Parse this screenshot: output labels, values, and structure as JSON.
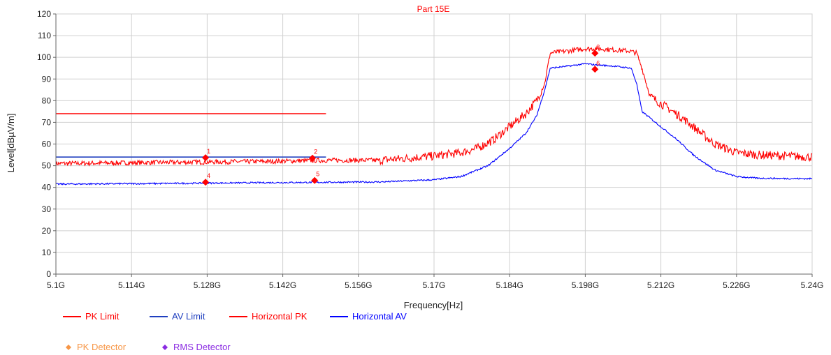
{
  "chart_data": {
    "type": "line",
    "title": "Part 15E",
    "xlabel": "Frequency[Hz]",
    "ylabel": "Level[dBµV/m]",
    "xlim": [
      5.1,
      5.24
    ],
    "ylim": [
      0,
      120
    ],
    "grid": true,
    "x_unit": "GHz",
    "x_ticks": [
      5.1,
      5.114,
      5.128,
      5.142,
      5.156,
      5.17,
      5.184,
      5.198,
      5.212,
      5.226,
      5.24
    ],
    "x_tick_labels": [
      "5.1G",
      "5.114G",
      "5.128G",
      "5.142G",
      "5.156G",
      "5.17G",
      "5.184G",
      "5.198G",
      "5.212G",
      "5.226G",
      "5.24G"
    ],
    "y_ticks": [
      0,
      10,
      20,
      30,
      40,
      50,
      60,
      70,
      80,
      90,
      100,
      110,
      120
    ],
    "y_tick_labels": [
      "0",
      "10",
      "20",
      "30",
      "40",
      "50",
      "60",
      "70",
      "80",
      "90",
      "100",
      "110",
      "120"
    ],
    "legend_placement": "bottom",
    "colors": {
      "title": "#ff0000",
      "pk_limit": "#ff0000",
      "av_limit": "#1f3fbf",
      "horizontal_pk": "#ff0000",
      "horizontal_av": "#0000ff",
      "pk_detector": "#f79646",
      "rms_detector": "#8a2be2",
      "marker": "#ff0000",
      "grid": "#d0d0d0"
    },
    "series": [
      {
        "name": "PK Limit",
        "color": "#ff0000",
        "x": [
          5.1,
          5.15
        ],
        "y": [
          74,
          74
        ]
      },
      {
        "name": "AV Limit",
        "color": "#1f3fbf",
        "x": [
          5.1,
          5.15
        ],
        "y": [
          54,
          54
        ]
      },
      {
        "name": "Horizontal PK",
        "color": "#ff0000",
        "x": [
          5.1,
          5.12,
          5.14,
          5.15,
          5.16,
          5.165,
          5.17,
          5.175,
          5.178,
          5.181,
          5.184,
          5.187,
          5.189,
          5.1905,
          5.1915,
          5.195,
          5.198,
          5.2,
          5.203,
          5.206,
          5.2075,
          5.2085,
          5.21,
          5.213,
          5.216,
          5.219,
          5.222,
          5.226,
          5.23,
          5.235,
          5.24
        ],
        "y": [
          51,
          51.5,
          52,
          52.5,
          52.5,
          53.5,
          54.5,
          56,
          58,
          62,
          68,
          74,
          80,
          88,
          102,
          103,
          104,
          104,
          103.5,
          103,
          102,
          95,
          82,
          77,
          72,
          66,
          60,
          56,
          55,
          54.5,
          54
        ]
      },
      {
        "name": "Horizontal AV",
        "color": "#0000ff",
        "x": [
          5.1,
          5.12,
          5.14,
          5.16,
          5.17,
          5.175,
          5.18,
          5.184,
          5.187,
          5.189,
          5.1905,
          5.1915,
          5.195,
          5.198,
          5.2,
          5.203,
          5.2065,
          5.2075,
          5.2085,
          5.211,
          5.215,
          5.218,
          5.222,
          5.226,
          5.23,
          5.24
        ],
        "y": [
          41.5,
          41.8,
          42.2,
          42.5,
          43.5,
          45,
          50,
          58,
          65,
          73,
          85,
          95,
          96,
          97,
          96.5,
          96,
          95,
          88,
          75,
          70,
          62,
          55,
          48,
          45,
          44.2,
          44
        ]
      }
    ],
    "detector_markers": [
      {
        "label": "1",
        "x": 5.1277,
        "y": 53.7
      },
      {
        "label": "2",
        "x": 5.1475,
        "y": 53.5
      },
      {
        "label": "3",
        "x": 5.1998,
        "y": 101.9
      },
      {
        "label": "4",
        "x": 5.1277,
        "y": 42.4
      },
      {
        "label": "5",
        "x": 5.1479,
        "y": 43.2
      },
      {
        "label": "6",
        "x": 5.1998,
        "y": 94.5
      }
    ],
    "legend": [
      {
        "label": "PK Limit",
        "kind": "line",
        "color": "#ff0000"
      },
      {
        "label": "AV Limit",
        "kind": "line",
        "color": "#1f3fbf"
      },
      {
        "label": "Horizontal PK",
        "kind": "line",
        "color": "#ff0000"
      },
      {
        "label": "Horizontal AV",
        "kind": "line",
        "color": "#0000ff"
      },
      {
        "label": "PK Detector",
        "kind": "diamond",
        "color": "#f79646"
      },
      {
        "label": "RMS Detector",
        "kind": "diamond",
        "color": "#8a2be2"
      }
    ]
  }
}
